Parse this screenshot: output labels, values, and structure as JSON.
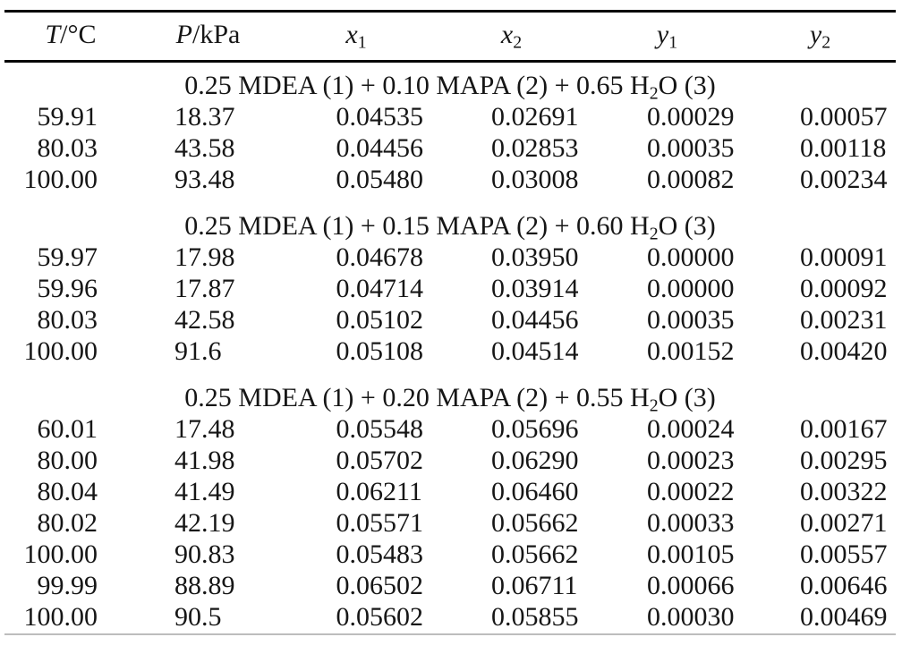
{
  "page": {
    "background": "#ffffff",
    "text_color": "#161616",
    "rule_color": "#000000",
    "bottom_rule_color": "#bdbdbd"
  },
  "table": {
    "columns": [
      {
        "name": "temperature",
        "symbol": "T",
        "unit": "/°C"
      },
      {
        "name": "pressure",
        "symbol": "P",
        "unit": "/kPa"
      },
      {
        "name": "x1",
        "symbol": "x",
        "sub": "1"
      },
      {
        "name": "x2",
        "symbol": "x",
        "sub": "2"
      },
      {
        "name": "y1",
        "symbol": "y",
        "sub": "1"
      },
      {
        "name": "y2",
        "symbol": "y",
        "sub": "2"
      }
    ],
    "sections": [
      {
        "title": {
          "pre": "0.25 MDEA (1) + 0.10 MAPA (2) + 0.65 H",
          "sub": "2",
          "post": "O (3)"
        },
        "rows": [
          [
            "59.91",
            "18.37",
            "0.04535",
            "0.02691",
            "0.00029",
            "0.00057"
          ],
          [
            "80.03",
            "43.58",
            "0.04456",
            "0.02853",
            "0.00035",
            "0.00118"
          ],
          [
            "100.00",
            "93.48",
            "0.05480",
            "0.03008",
            "0.00082",
            "0.00234"
          ]
        ]
      },
      {
        "title": {
          "pre": "0.25 MDEA (1) + 0.15 MAPA (2) + 0.60 H",
          "sub": "2",
          "post": "O (3)"
        },
        "rows": [
          [
            "59.97",
            "17.98",
            "0.04678",
            "0.03950",
            "0.00000",
            "0.00091"
          ],
          [
            "59.96",
            "17.87",
            "0.04714",
            "0.03914",
            "0.00000",
            "0.00092"
          ],
          [
            "80.03",
            "42.58",
            "0.05102",
            "0.04456",
            "0.00035",
            "0.00231"
          ],
          [
            "100.00",
            "91.6",
            "0.05108",
            "0.04514",
            "0.00152",
            "0.00420"
          ]
        ]
      },
      {
        "title": {
          "pre": "0.25 MDEA (1) + 0.20 MAPA (2) + 0.55 H",
          "sub": "2",
          "post": "O (3)"
        },
        "rows": [
          [
            "60.01",
            "17.48",
            "0.05548",
            "0.05696",
            "0.00024",
            "0.00167"
          ],
          [
            "80.00",
            "41.98",
            "0.05702",
            "0.06290",
            "0.00023",
            "0.00295"
          ],
          [
            "80.04",
            "41.49",
            "0.06211",
            "0.06460",
            "0.00022",
            "0.00322"
          ],
          [
            "80.02",
            "42.19",
            "0.05571",
            "0.05662",
            "0.00033",
            "0.00271"
          ],
          [
            "100.00",
            "90.83",
            "0.05483",
            "0.05662",
            "0.00105",
            "0.00557"
          ],
          [
            "99.99",
            "88.89",
            "0.06502",
            "0.06711",
            "0.00066",
            "0.00646"
          ],
          [
            "100.00",
            "90.5",
            "0.05602",
            "0.05855",
            "0.00030",
            "0.00469"
          ]
        ]
      }
    ]
  }
}
